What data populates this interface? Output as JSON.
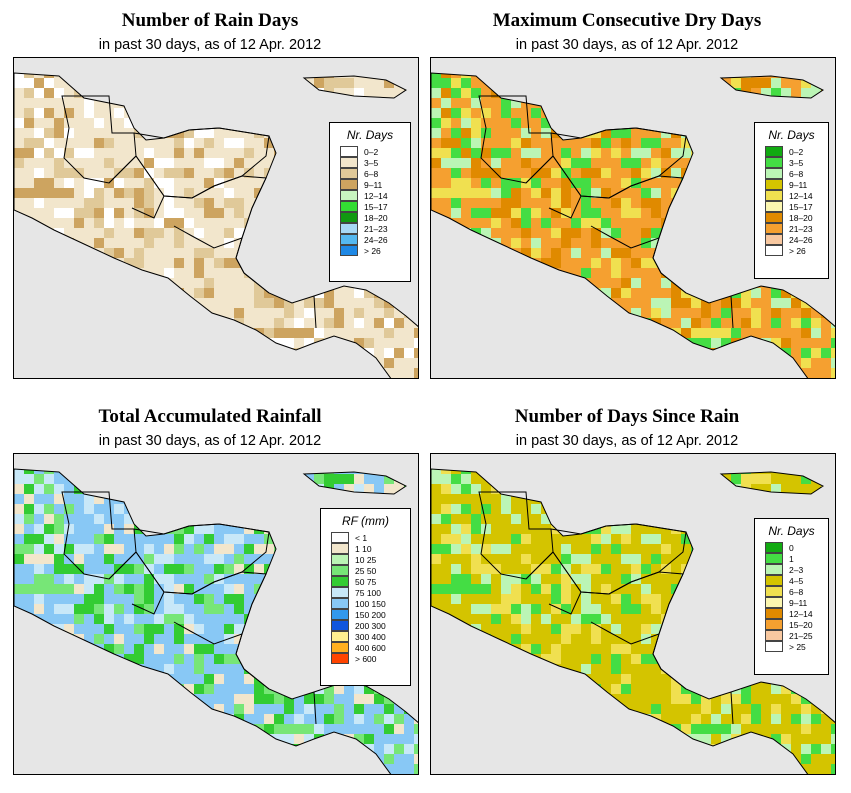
{
  "panels": [
    {
      "id": "rain-days",
      "title": "Number of Rain Days",
      "subtitle": "in past 30 days, as of  12 Apr. 2012",
      "legend_title": "Nr. Days",
      "legend": [
        {
          "label": "0–2",
          "color": "#ffffff"
        },
        {
          "label": "3–5",
          "color": "#f2e6cc"
        },
        {
          "label": "6–8",
          "color": "#e0c999"
        },
        {
          "label": "9–11",
          "color": "#cda460"
        },
        {
          "label": "12–14",
          "color": "#c8f5c0"
        },
        {
          "label": "15–17",
          "color": "#33dd33"
        },
        {
          "label": "18–20",
          "color": "#119911"
        },
        {
          "label": "21–23",
          "color": "#a8d8f5"
        },
        {
          "label": "24–26",
          "color": "#55b8f0"
        },
        {
          "label": "> 26",
          "color": "#1e88e5"
        }
      ]
    },
    {
      "id": "dry-days",
      "title": "Maximum Consecutive Dry Days",
      "subtitle": "in past 30 days, as of  12 Apr. 2012",
      "legend_title": "Nr. Days",
      "legend": [
        {
          "label": "0–2",
          "color": "#11aa11"
        },
        {
          "label": "3–5",
          "color": "#44dd44"
        },
        {
          "label": "6–8",
          "color": "#bbf5b5"
        },
        {
          "label": "9–11",
          "color": "#d4c400"
        },
        {
          "label": "12–14",
          "color": "#f0e050"
        },
        {
          "label": "15–17",
          "color": "#fbf6b0"
        },
        {
          "label": "18–20",
          "color": "#e08a00"
        },
        {
          "label": "21–23",
          "color": "#f5a030"
        },
        {
          "label": "24–26",
          "color": "#f8c8a0"
        },
        {
          "label": "> 26",
          "color": "#ffffff"
        }
      ]
    },
    {
      "id": "rainfall",
      "title": "Total Accumulated Rainfall",
      "subtitle": "in past 30 days, as of  12 Apr. 2012",
      "legend_title": "RF (mm)",
      "legend": [
        {
          "label": "< 1",
          "color": "#ffffff"
        },
        {
          "label": "1   10",
          "color": "#f2e6cc"
        },
        {
          "label": "10   25",
          "color": "#bbf5b5"
        },
        {
          "label": "25   50",
          "color": "#77e677"
        },
        {
          "label": "50   75",
          "color": "#33cc33"
        },
        {
          "label": "75   100",
          "color": "#c8e8f8"
        },
        {
          "label": "100   150",
          "color": "#88c8f5"
        },
        {
          "label": "150   200",
          "color": "#3399ee"
        },
        {
          "label": "200   300",
          "color": "#1155dd"
        },
        {
          "label": "300   400",
          "color": "#fff090"
        },
        {
          "label": "400   600",
          "color": "#ffb020"
        },
        {
          "label": "> 600",
          "color": "#ff4400"
        }
      ]
    },
    {
      "id": "since-rain",
      "title": "Number of Days Since Rain",
      "subtitle": "in past 30 days, as of  12 Apr. 2012",
      "legend_title": "Nr. Days",
      "legend": [
        {
          "label": "0",
          "color": "#11aa11"
        },
        {
          "label": "1",
          "color": "#44dd44"
        },
        {
          "label": "2–3",
          "color": "#bbf5b5"
        },
        {
          "label": "4–5",
          "color": "#d4c400"
        },
        {
          "label": "6–8",
          "color": "#f0e050"
        },
        {
          "label": "9–11",
          "color": "#fbf6b0"
        },
        {
          "label": "12–14",
          "color": "#e08a00"
        },
        {
          "label": "15–20",
          "color": "#f5a030"
        },
        {
          "label": "21–25",
          "color": "#f8c8a0"
        },
        {
          "label": "> 25",
          "color": "#ffffff"
        }
      ]
    }
  ],
  "colors": {
    "ocean": "#e6e6e6",
    "border": "#000000"
  }
}
